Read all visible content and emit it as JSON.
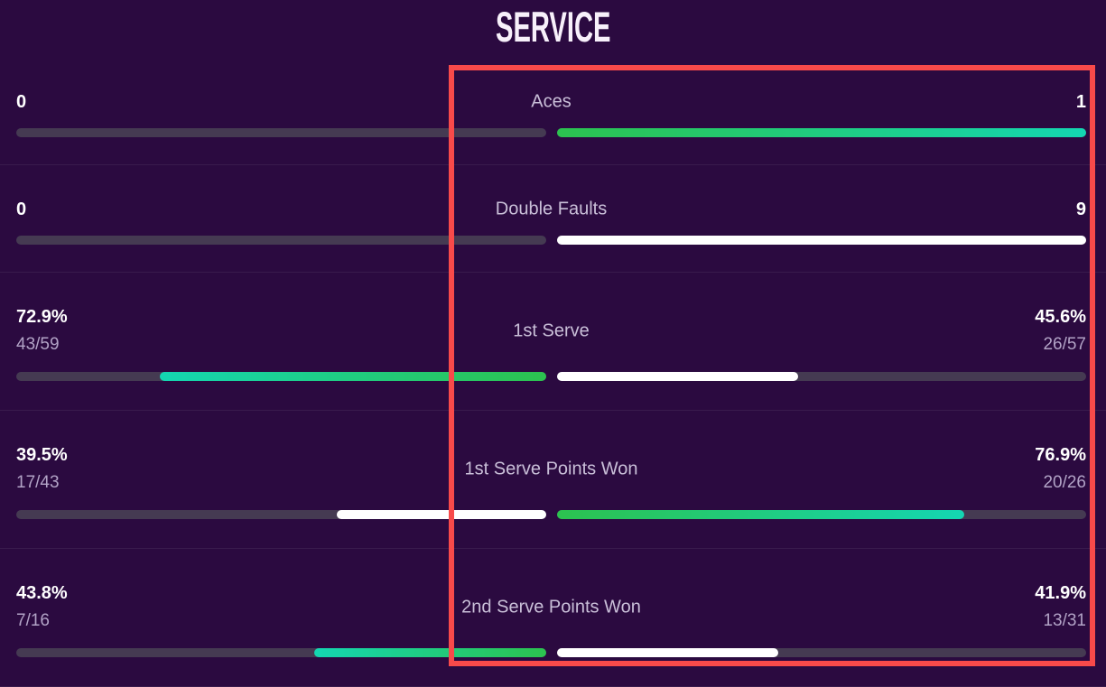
{
  "title": "SERVICE",
  "colors": {
    "background": "#2b0a40",
    "bar_track": "#453a52",
    "bar_green_start": "#2cc24f",
    "bar_green_end": "#14d6b2",
    "bar_white": "#ffffff",
    "value_text": "#ffffff",
    "label_text": "#c9bfd8",
    "fraction_text": "#b2a3c6",
    "highlight_box": "#f84a4a"
  },
  "annotation": {
    "type": "highlight-rectangle",
    "color": "#f84a4a"
  },
  "rows": [
    {
      "label": "Aces",
      "left": {
        "value": "0",
        "fraction": "",
        "bar_pct": 0,
        "bar_style": "empty"
      },
      "right": {
        "value": "1",
        "fraction": "",
        "bar_pct": 100,
        "bar_style": "green"
      }
    },
    {
      "label": "Double Faults",
      "left": {
        "value": "0",
        "fraction": "",
        "bar_pct": 0,
        "bar_style": "empty"
      },
      "right": {
        "value": "9",
        "fraction": "",
        "bar_pct": 100,
        "bar_style": "white"
      }
    },
    {
      "label": "1st Serve",
      "left": {
        "value": "72.9%",
        "fraction": "43/59",
        "bar_pct": 72.9,
        "bar_style": "green"
      },
      "right": {
        "value": "45.6%",
        "fraction": "26/57",
        "bar_pct": 45.6,
        "bar_style": "white"
      }
    },
    {
      "label": "1st Serve Points Won",
      "left": {
        "value": "39.5%",
        "fraction": "17/43",
        "bar_pct": 39.5,
        "bar_style": "white"
      },
      "right": {
        "value": "76.9%",
        "fraction": "20/26",
        "bar_pct": 76.9,
        "bar_style": "green"
      }
    },
    {
      "label": "2nd Serve Points Won",
      "left": {
        "value": "43.8%",
        "fraction": "7/16",
        "bar_pct": 43.8,
        "bar_style": "green"
      },
      "right": {
        "value": "41.9%",
        "fraction": "13/31",
        "bar_pct": 41.9,
        "bar_style": "white"
      }
    }
  ],
  "chart_data": {
    "type": "bar",
    "title": "SERVICE",
    "orientation": "horizontal-paired",
    "categories": [
      "Aces",
      "Double Faults",
      "1st Serve",
      "1st Serve Points Won",
      "2nd Serve Points Won"
    ],
    "series": [
      {
        "name": "player-left",
        "values": [
          0,
          0,
          72.9,
          39.5,
          43.8
        ],
        "display_values": [
          "0",
          "0",
          "72.9%",
          "39.5%",
          "43.8%"
        ],
        "fractions": [
          "",
          "",
          "43/59",
          "17/43",
          "7/16"
        ]
      },
      {
        "name": "player-right",
        "values": [
          1,
          9,
          45.6,
          76.9,
          41.9
        ],
        "display_values": [
          "1",
          "9",
          "45.6%",
          "76.9%",
          "41.9%"
        ],
        "fractions": [
          "",
          "",
          "26/57",
          "20/26",
          "13/31"
        ]
      }
    ],
    "legend": "none",
    "grid": false,
    "highlighted_region": "right player column (red rectangle overlay)"
  }
}
